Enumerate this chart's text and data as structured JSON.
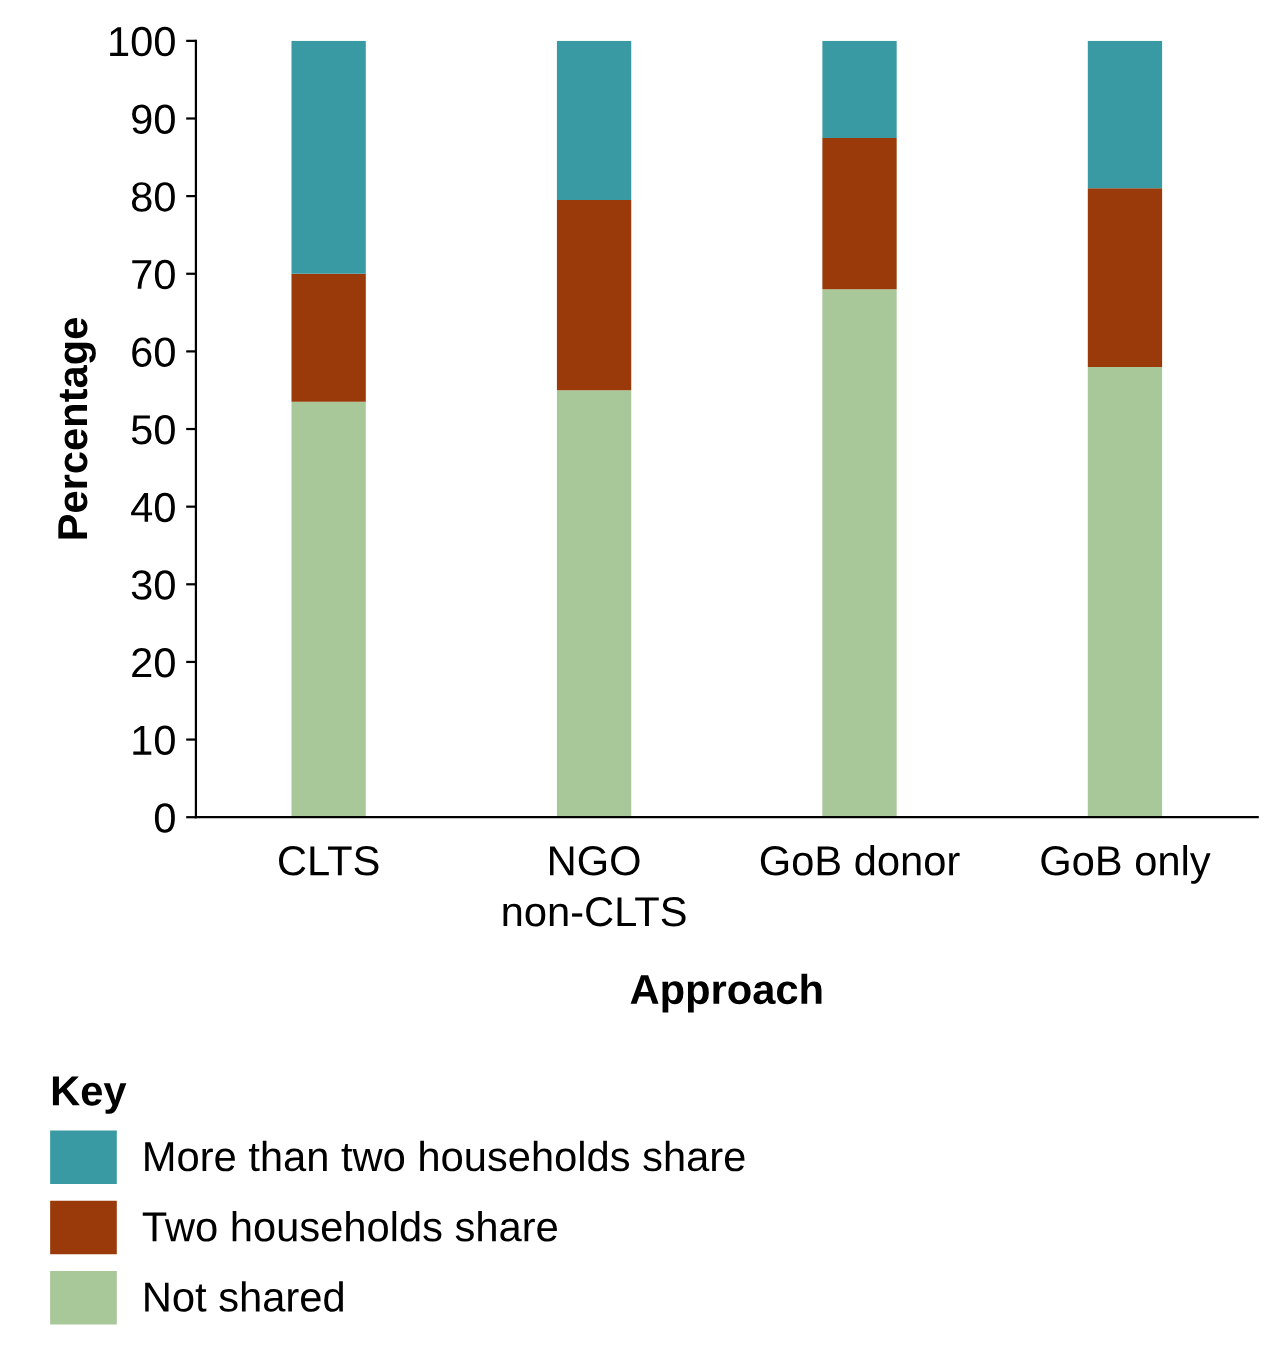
{
  "chart_data": {
    "type": "bar",
    "stacked": true,
    "xlabel": "Approach",
    "ylabel": "Percentage",
    "legend_title": "Key",
    "legend": "bottom",
    "categories": [
      "CLTS",
      "NGO\nnon-CLTS",
      "GoB donor",
      "GoB only"
    ],
    "series": [
      {
        "name": "Not shared",
        "color": "#a8c89a",
        "values": [
          53.5,
          55,
          68,
          58
        ]
      },
      {
        "name": "Two households share",
        "color": "#9a3a0a",
        "values": [
          16.5,
          24.5,
          19.5,
          23
        ]
      },
      {
        "name": "More than two households share",
        "color": "#3a9aa3",
        "values": [
          30,
          20.5,
          12.5,
          19
        ]
      }
    ],
    "ylim": [
      0,
      100
    ],
    "yticks": [
      0,
      10,
      20,
      30,
      40,
      50,
      60,
      70,
      80,
      90,
      100
    ],
    "grid": false
  }
}
